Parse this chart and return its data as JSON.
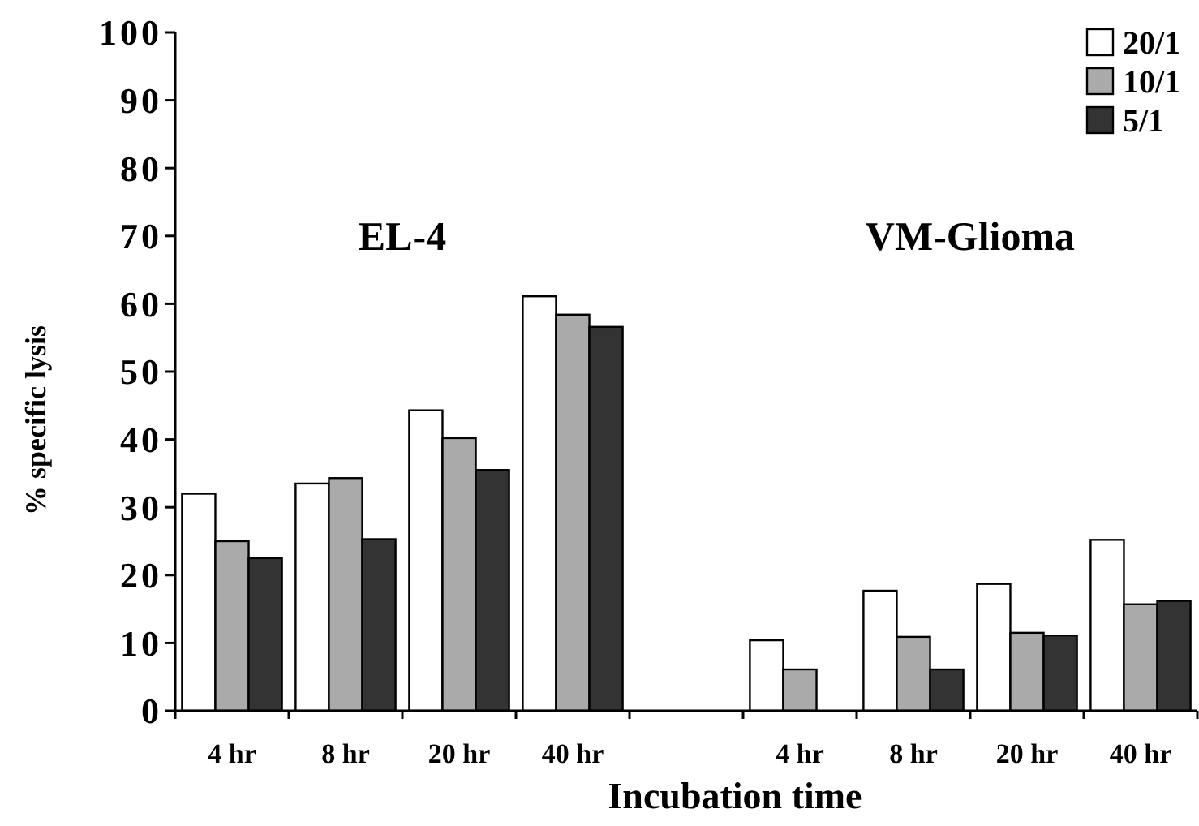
{
  "chart_data": {
    "type": "bar",
    "xlabel": "Incubation time",
    "ylabel": "% specific lysis",
    "categories": [
      "4 hr",
      "8 hr",
      "20 hr",
      "40 hr",
      null,
      "4 hr",
      "8 hr",
      "20 hr",
      "40 hr"
    ],
    "series": [
      {
        "name": "20/1",
        "color": "#ffffff",
        "values": [
          32,
          33.5,
          44.3,
          61.1,
          null,
          10.4,
          17.7,
          18.7,
          25.2
        ]
      },
      {
        "name": "10/1",
        "color": "#aaaaaa",
        "values": [
          25,
          34.3,
          40.2,
          58.4,
          null,
          6.1,
          10.9,
          11.5,
          15.7
        ]
      },
      {
        "name": "5/1",
        "color": "#333333",
        "values": [
          22.5,
          25.3,
          35.5,
          56.6,
          null,
          0,
          6.1,
          11.1,
          16.2
        ]
      }
    ],
    "annotations": [
      "EL-4",
      "VM-Glioma"
    ],
    "ylim": [
      0,
      100
    ],
    "yticks": [
      0,
      10,
      20,
      30,
      40,
      50,
      60,
      70,
      80,
      90,
      100
    ],
    "grid": false,
    "legend": "top right"
  }
}
